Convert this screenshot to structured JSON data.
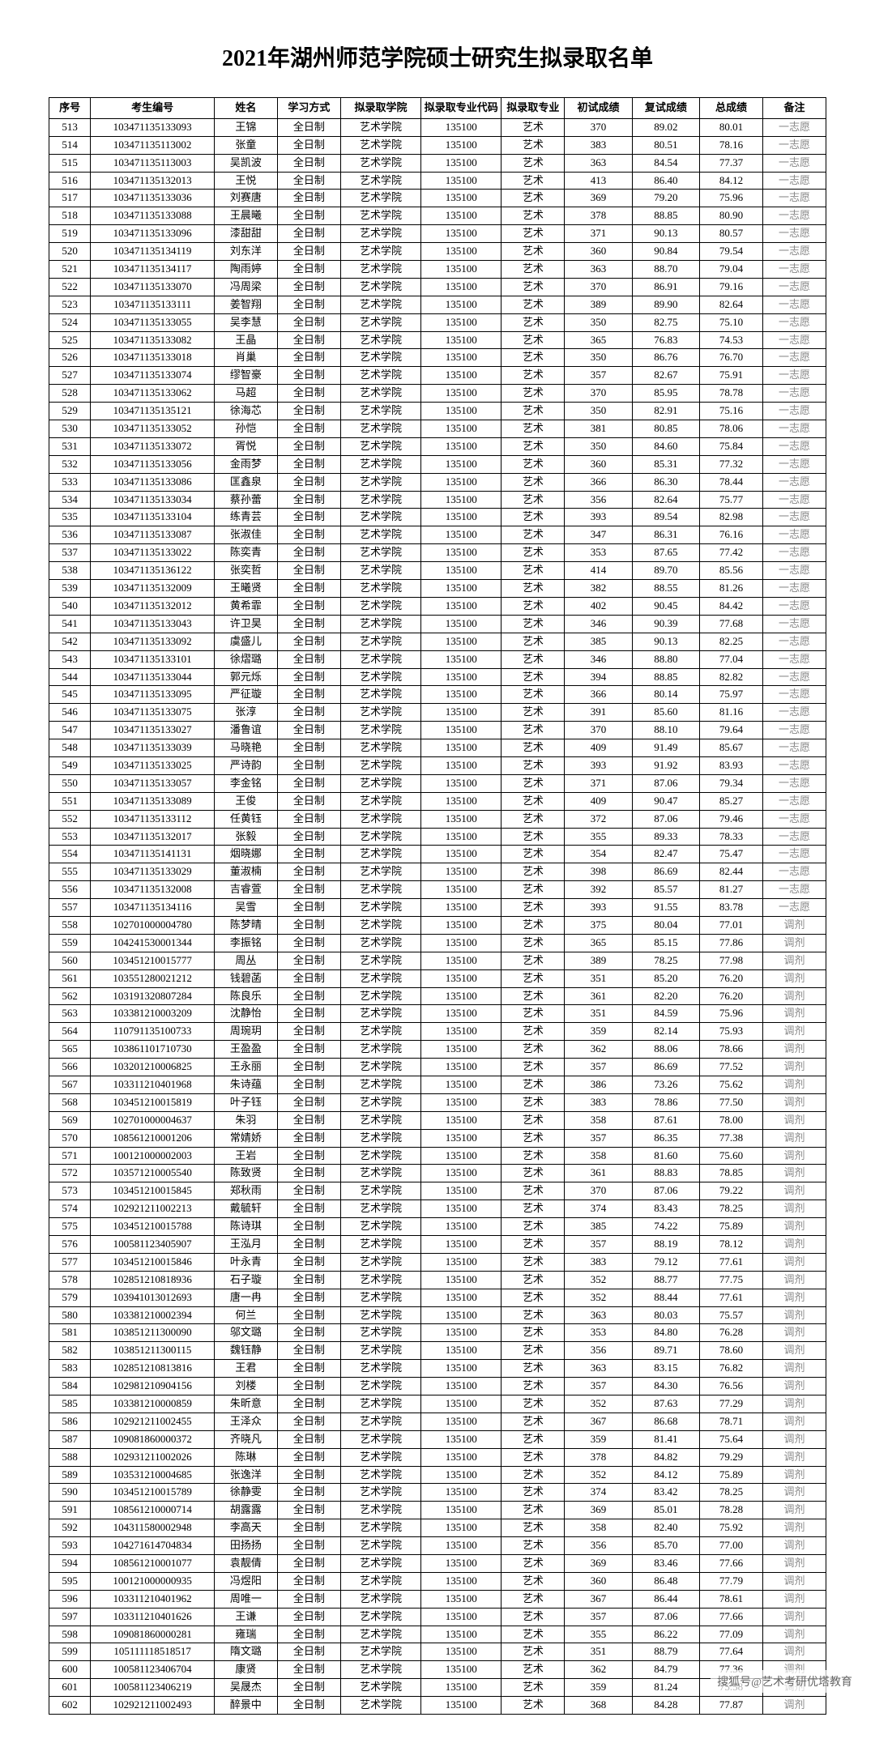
{
  "title": "2021年湖州师范学院硕士研究生拟录取名单",
  "watermark": "搜狐号@艺术考研优塔教育",
  "headers": [
    "序号",
    "考生编号",
    "姓名",
    "学习方式",
    "拟录取学院",
    "拟录取专业代码",
    "拟录取专业",
    "初试成绩",
    "复试成绩",
    "总成绩",
    "备注"
  ],
  "rows": [
    [
      "513",
      "103471135133093",
      "王锦",
      "全日制",
      "艺术学院",
      "135100",
      "艺术",
      "370",
      "89.02",
      "80.01",
      "一志愿"
    ],
    [
      "514",
      "103471135113002",
      "张童",
      "全日制",
      "艺术学院",
      "135100",
      "艺术",
      "383",
      "80.51",
      "78.16",
      "一志愿"
    ],
    [
      "515",
      "103471135113003",
      "吴凯波",
      "全日制",
      "艺术学院",
      "135100",
      "艺术",
      "363",
      "84.54",
      "77.37",
      "一志愿"
    ],
    [
      "516",
      "103471135132013",
      "王悦",
      "全日制",
      "艺术学院",
      "135100",
      "艺术",
      "413",
      "86.40",
      "84.12",
      "一志愿"
    ],
    [
      "517",
      "103471135133036",
      "刘赛唐",
      "全日制",
      "艺术学院",
      "135100",
      "艺术",
      "369",
      "79.20",
      "75.96",
      "一志愿"
    ],
    [
      "518",
      "103471135133088",
      "王晨曦",
      "全日制",
      "艺术学院",
      "135100",
      "艺术",
      "378",
      "88.85",
      "80.90",
      "一志愿"
    ],
    [
      "519",
      "103471135133096",
      "漆甜甜",
      "全日制",
      "艺术学院",
      "135100",
      "艺术",
      "371",
      "90.13",
      "80.57",
      "一志愿"
    ],
    [
      "520",
      "103471135134119",
      "刘东洋",
      "全日制",
      "艺术学院",
      "135100",
      "艺术",
      "360",
      "90.84",
      "79.54",
      "一志愿"
    ],
    [
      "521",
      "103471135134117",
      "陶雨婷",
      "全日制",
      "艺术学院",
      "135100",
      "艺术",
      "363",
      "88.70",
      "79.04",
      "一志愿"
    ],
    [
      "522",
      "103471135133070",
      "冯周梁",
      "全日制",
      "艺术学院",
      "135100",
      "艺术",
      "370",
      "86.91",
      "79.16",
      "一志愿"
    ],
    [
      "523",
      "103471135133111",
      "姜智翔",
      "全日制",
      "艺术学院",
      "135100",
      "艺术",
      "389",
      "89.90",
      "82.64",
      "一志愿"
    ],
    [
      "524",
      "103471135133055",
      "吴李慧",
      "全日制",
      "艺术学院",
      "135100",
      "艺术",
      "350",
      "82.75",
      "75.10",
      "一志愿"
    ],
    [
      "525",
      "103471135133082",
      "王晶",
      "全日制",
      "艺术学院",
      "135100",
      "艺术",
      "365",
      "76.83",
      "74.53",
      "一志愿"
    ],
    [
      "526",
      "103471135133018",
      "肖巢",
      "全日制",
      "艺术学院",
      "135100",
      "艺术",
      "350",
      "86.76",
      "76.70",
      "一志愿"
    ],
    [
      "527",
      "103471135133074",
      "缪智豪",
      "全日制",
      "艺术学院",
      "135100",
      "艺术",
      "357",
      "82.67",
      "75.91",
      "一志愿"
    ],
    [
      "528",
      "103471135133062",
      "马超",
      "全日制",
      "艺术学院",
      "135100",
      "艺术",
      "370",
      "85.95",
      "78.78",
      "一志愿"
    ],
    [
      "529",
      "103471135135121",
      "徐海芯",
      "全日制",
      "艺术学院",
      "135100",
      "艺术",
      "350",
      "82.91",
      "75.16",
      "一志愿"
    ],
    [
      "530",
      "103471135133052",
      "孙恺",
      "全日制",
      "艺术学院",
      "135100",
      "艺术",
      "381",
      "80.85",
      "78.06",
      "一志愿"
    ],
    [
      "531",
      "103471135133072",
      "胥悦",
      "全日制",
      "艺术学院",
      "135100",
      "艺术",
      "350",
      "84.60",
      "75.84",
      "一志愿"
    ],
    [
      "532",
      "103471135133056",
      "金雨梦",
      "全日制",
      "艺术学院",
      "135100",
      "艺术",
      "360",
      "85.31",
      "77.32",
      "一志愿"
    ],
    [
      "533",
      "103471135133086",
      "匡鑫泉",
      "全日制",
      "艺术学院",
      "135100",
      "艺术",
      "366",
      "86.30",
      "78.44",
      "一志愿"
    ],
    [
      "534",
      "103471135133034",
      "蔡孙蕾",
      "全日制",
      "艺术学院",
      "135100",
      "艺术",
      "356",
      "82.64",
      "75.77",
      "一志愿"
    ],
    [
      "535",
      "103471135133104",
      "练青芸",
      "全日制",
      "艺术学院",
      "135100",
      "艺术",
      "393",
      "89.54",
      "82.98",
      "一志愿"
    ],
    [
      "536",
      "103471135133087",
      "张淑佳",
      "全日制",
      "艺术学院",
      "135100",
      "艺术",
      "347",
      "86.31",
      "76.16",
      "一志愿"
    ],
    [
      "537",
      "103471135133022",
      "陈奕青",
      "全日制",
      "艺术学院",
      "135100",
      "艺术",
      "353",
      "87.65",
      "77.42",
      "一志愿"
    ],
    [
      "538",
      "103471135136122",
      "张奕哲",
      "全日制",
      "艺术学院",
      "135100",
      "艺术",
      "414",
      "89.70",
      "85.56",
      "一志愿"
    ],
    [
      "539",
      "103471135132009",
      "王曦贤",
      "全日制",
      "艺术学院",
      "135100",
      "艺术",
      "382",
      "88.55",
      "81.26",
      "一志愿"
    ],
    [
      "540",
      "103471135132012",
      "黄希霏",
      "全日制",
      "艺术学院",
      "135100",
      "艺术",
      "402",
      "90.45",
      "84.42",
      "一志愿"
    ],
    [
      "541",
      "103471135133043",
      "许卫昊",
      "全日制",
      "艺术学院",
      "135100",
      "艺术",
      "346",
      "90.39",
      "77.68",
      "一志愿"
    ],
    [
      "542",
      "103471135133092",
      "虞盛儿",
      "全日制",
      "艺术学院",
      "135100",
      "艺术",
      "385",
      "90.13",
      "82.25",
      "一志愿"
    ],
    [
      "543",
      "103471135133101",
      "徐熠璐",
      "全日制",
      "艺术学院",
      "135100",
      "艺术",
      "346",
      "88.80",
      "77.04",
      "一志愿"
    ],
    [
      "544",
      "103471135133044",
      "郭元烁",
      "全日制",
      "艺术学院",
      "135100",
      "艺术",
      "394",
      "88.85",
      "82.82",
      "一志愿"
    ],
    [
      "545",
      "103471135133095",
      "严征璇",
      "全日制",
      "艺术学院",
      "135100",
      "艺术",
      "366",
      "80.14",
      "75.97",
      "一志愿"
    ],
    [
      "546",
      "103471135133075",
      "张淳",
      "全日制",
      "艺术学院",
      "135100",
      "艺术",
      "391",
      "85.60",
      "81.16",
      "一志愿"
    ],
    [
      "547",
      "103471135133027",
      "潘鲁谊",
      "全日制",
      "艺术学院",
      "135100",
      "艺术",
      "370",
      "88.10",
      "79.64",
      "一志愿"
    ],
    [
      "548",
      "103471135133039",
      "马晓艳",
      "全日制",
      "艺术学院",
      "135100",
      "艺术",
      "409",
      "91.49",
      "85.67",
      "一志愿"
    ],
    [
      "549",
      "103471135133025",
      "严诗韵",
      "全日制",
      "艺术学院",
      "135100",
      "艺术",
      "393",
      "91.92",
      "83.93",
      "一志愿"
    ],
    [
      "550",
      "103471135133057",
      "李金铭",
      "全日制",
      "艺术学院",
      "135100",
      "艺术",
      "371",
      "87.06",
      "79.34",
      "一志愿"
    ],
    [
      "551",
      "103471135133089",
      "王俊",
      "全日制",
      "艺术学院",
      "135100",
      "艺术",
      "409",
      "90.47",
      "85.27",
      "一志愿"
    ],
    [
      "552",
      "103471135133112",
      "任黄钰",
      "全日制",
      "艺术学院",
      "135100",
      "艺术",
      "372",
      "87.06",
      "79.46",
      "一志愿"
    ],
    [
      "553",
      "103471135132017",
      "张毅",
      "全日制",
      "艺术学院",
      "135100",
      "艺术",
      "355",
      "89.33",
      "78.33",
      "一志愿"
    ],
    [
      "554",
      "103471135141131",
      "烟晓娜",
      "全日制",
      "艺术学院",
      "135100",
      "艺术",
      "354",
      "82.47",
      "75.47",
      "一志愿"
    ],
    [
      "555",
      "103471135133029",
      "董淑楠",
      "全日制",
      "艺术学院",
      "135100",
      "艺术",
      "398",
      "86.69",
      "82.44",
      "一志愿"
    ],
    [
      "556",
      "103471135132008",
      "吉睿萱",
      "全日制",
      "艺术学院",
      "135100",
      "艺术",
      "392",
      "85.57",
      "81.27",
      "一志愿"
    ],
    [
      "557",
      "103471135134116",
      "吴雪",
      "全日制",
      "艺术学院",
      "135100",
      "艺术",
      "393",
      "91.55",
      "83.78",
      "一志愿"
    ],
    [
      "558",
      "102701000004780",
      "陈梦晴",
      "全日制",
      "艺术学院",
      "135100",
      "艺术",
      "375",
      "80.04",
      "77.01",
      "调剂"
    ],
    [
      "559",
      "104241530001344",
      "李振铭",
      "全日制",
      "艺术学院",
      "135100",
      "艺术",
      "365",
      "85.15",
      "77.86",
      "调剂"
    ],
    [
      "560",
      "103451210015777",
      "周丛",
      "全日制",
      "艺术学院",
      "135100",
      "艺术",
      "389",
      "78.25",
      "77.98",
      "调剂"
    ],
    [
      "561",
      "103551280021212",
      "钱碧菡",
      "全日制",
      "艺术学院",
      "135100",
      "艺术",
      "351",
      "85.20",
      "76.20",
      "调剂"
    ],
    [
      "562",
      "103191320807284",
      "陈良乐",
      "全日制",
      "艺术学院",
      "135100",
      "艺术",
      "361",
      "82.20",
      "76.20",
      "调剂"
    ],
    [
      "563",
      "103381210003209",
      "沈静怡",
      "全日制",
      "艺术学院",
      "135100",
      "艺术",
      "351",
      "84.59",
      "75.96",
      "调剂"
    ],
    [
      "564",
      "110791135100733",
      "周琬玥",
      "全日制",
      "艺术学院",
      "135100",
      "艺术",
      "359",
      "82.14",
      "75.93",
      "调剂"
    ],
    [
      "565",
      "103861101710730",
      "王盈盈",
      "全日制",
      "艺术学院",
      "135100",
      "艺术",
      "362",
      "88.06",
      "78.66",
      "调剂"
    ],
    [
      "566",
      "103201210006825",
      "王永丽",
      "全日制",
      "艺术学院",
      "135100",
      "艺术",
      "357",
      "86.69",
      "77.52",
      "调剂"
    ],
    [
      "567",
      "103311210401968",
      "朱诗蕴",
      "全日制",
      "艺术学院",
      "135100",
      "艺术",
      "386",
      "73.26",
      "75.62",
      "调剂"
    ],
    [
      "568",
      "103451210015819",
      "叶子钰",
      "全日制",
      "艺术学院",
      "135100",
      "艺术",
      "383",
      "78.86",
      "77.50",
      "调剂"
    ],
    [
      "569",
      "102701000004637",
      "朱羽",
      "全日制",
      "艺术学院",
      "135100",
      "艺术",
      "358",
      "87.61",
      "78.00",
      "调剂"
    ],
    [
      "570",
      "108561210001206",
      "常婧娇",
      "全日制",
      "艺术学院",
      "135100",
      "艺术",
      "357",
      "86.35",
      "77.38",
      "调剂"
    ],
    [
      "571",
      "100121000002003",
      "王岩",
      "全日制",
      "艺术学院",
      "135100",
      "艺术",
      "358",
      "81.60",
      "75.60",
      "调剂"
    ],
    [
      "572",
      "103571210005540",
      "陈致贤",
      "全日制",
      "艺术学院",
      "135100",
      "艺术",
      "361",
      "88.83",
      "78.85",
      "调剂"
    ],
    [
      "573",
      "103451210015845",
      "郑秋雨",
      "全日制",
      "艺术学院",
      "135100",
      "艺术",
      "370",
      "87.06",
      "79.22",
      "调剂"
    ],
    [
      "574",
      "102921211002213",
      "戴毓轩",
      "全日制",
      "艺术学院",
      "135100",
      "艺术",
      "374",
      "83.43",
      "78.25",
      "调剂"
    ],
    [
      "575",
      "103451210015788",
      "陈诗琪",
      "全日制",
      "艺术学院",
      "135100",
      "艺术",
      "385",
      "74.22",
      "75.89",
      "调剂"
    ],
    [
      "576",
      "100581123405907",
      "王泓月",
      "全日制",
      "艺术学院",
      "135100",
      "艺术",
      "357",
      "88.19",
      "78.12",
      "调剂"
    ],
    [
      "577",
      "103451210015846",
      "叶永青",
      "全日制",
      "艺术学院",
      "135100",
      "艺术",
      "383",
      "79.12",
      "77.61",
      "调剂"
    ],
    [
      "578",
      "102851210818936",
      "石子璇",
      "全日制",
      "艺术学院",
      "135100",
      "艺术",
      "352",
      "88.77",
      "77.75",
      "调剂"
    ],
    [
      "579",
      "103941013012693",
      "唐一冉",
      "全日制",
      "艺术学院",
      "135100",
      "艺术",
      "352",
      "88.44",
      "77.61",
      "调剂"
    ],
    [
      "580",
      "103381210002394",
      "何兰",
      "全日制",
      "艺术学院",
      "135100",
      "艺术",
      "363",
      "80.03",
      "75.57",
      "调剂"
    ],
    [
      "581",
      "103851211300090",
      "邬文璐",
      "全日制",
      "艺术学院",
      "135100",
      "艺术",
      "353",
      "84.80",
      "76.28",
      "调剂"
    ],
    [
      "582",
      "103851211300115",
      "魏钰静",
      "全日制",
      "艺术学院",
      "135100",
      "艺术",
      "356",
      "89.71",
      "78.60",
      "调剂"
    ],
    [
      "583",
      "102851210813816",
      "王君",
      "全日制",
      "艺术学院",
      "135100",
      "艺术",
      "363",
      "83.15",
      "76.82",
      "调剂"
    ],
    [
      "584",
      "102981210904156",
      "刘楼",
      "全日制",
      "艺术学院",
      "135100",
      "艺术",
      "357",
      "84.30",
      "76.56",
      "调剂"
    ],
    [
      "585",
      "103381210000859",
      "朱昕意",
      "全日制",
      "艺术学院",
      "135100",
      "艺术",
      "352",
      "87.63",
      "77.29",
      "调剂"
    ],
    [
      "586",
      "102921211002455",
      "王泽众",
      "全日制",
      "艺术学院",
      "135100",
      "艺术",
      "367",
      "86.68",
      "78.71",
      "调剂"
    ],
    [
      "587",
      "109081860000372",
      "齐晓凡",
      "全日制",
      "艺术学院",
      "135100",
      "艺术",
      "359",
      "81.41",
      "75.64",
      "调剂"
    ],
    [
      "588",
      "102931211002026",
      "陈琳",
      "全日制",
      "艺术学院",
      "135100",
      "艺术",
      "378",
      "84.82",
      "79.29",
      "调剂"
    ],
    [
      "589",
      "103531210004685",
      "张逸洋",
      "全日制",
      "艺术学院",
      "135100",
      "艺术",
      "352",
      "84.12",
      "75.89",
      "调剂"
    ],
    [
      "590",
      "103451210015789",
      "徐静雯",
      "全日制",
      "艺术学院",
      "135100",
      "艺术",
      "374",
      "83.42",
      "78.25",
      "调剂"
    ],
    [
      "591",
      "108561210000714",
      "胡露露",
      "全日制",
      "艺术学院",
      "135100",
      "艺术",
      "369",
      "85.01",
      "78.28",
      "调剂"
    ],
    [
      "592",
      "104311580002948",
      "李高天",
      "全日制",
      "艺术学院",
      "135100",
      "艺术",
      "358",
      "82.40",
      "75.92",
      "调剂"
    ],
    [
      "593",
      "104271614704834",
      "田扬扬",
      "全日制",
      "艺术学院",
      "135100",
      "艺术",
      "356",
      "85.70",
      "77.00",
      "调剂"
    ],
    [
      "594",
      "108561210001077",
      "袁靓倩",
      "全日制",
      "艺术学院",
      "135100",
      "艺术",
      "369",
      "83.46",
      "77.66",
      "调剂"
    ],
    [
      "595",
      "100121000000935",
      "冯煜阳",
      "全日制",
      "艺术学院",
      "135100",
      "艺术",
      "360",
      "86.48",
      "77.79",
      "调剂"
    ],
    [
      "596",
      "103311210401962",
      "周唯一",
      "全日制",
      "艺术学院",
      "135100",
      "艺术",
      "367",
      "86.44",
      "78.61",
      "调剂"
    ],
    [
      "597",
      "103311210401626",
      "王谦",
      "全日制",
      "艺术学院",
      "135100",
      "艺术",
      "357",
      "87.06",
      "77.66",
      "调剂"
    ],
    [
      "598",
      "109081860000281",
      "雍瑞",
      "全日制",
      "艺术学院",
      "135100",
      "艺术",
      "355",
      "86.22",
      "77.09",
      "调剂"
    ],
    [
      "599",
      "105111118518517",
      "隋文璐",
      "全日制",
      "艺术学院",
      "135100",
      "艺术",
      "351",
      "88.79",
      "77.64",
      "调剂"
    ],
    [
      "600",
      "100581123406704",
      "康贤",
      "全日制",
      "艺术学院",
      "135100",
      "艺术",
      "362",
      "84.79",
      "77.36",
      "调剂"
    ],
    [
      "601",
      "100581123406219",
      "吴晟杰",
      "全日制",
      "艺术学院",
      "135100",
      "艺术",
      "359",
      "81.24",
      "75.58",
      "调剂"
    ],
    [
      "602",
      "102921211002493",
      "醉景中",
      "全日制",
      "艺术学院",
      "135100",
      "艺术",
      "368",
      "84.28",
      "77.87",
      "调剂"
    ]
  ]
}
